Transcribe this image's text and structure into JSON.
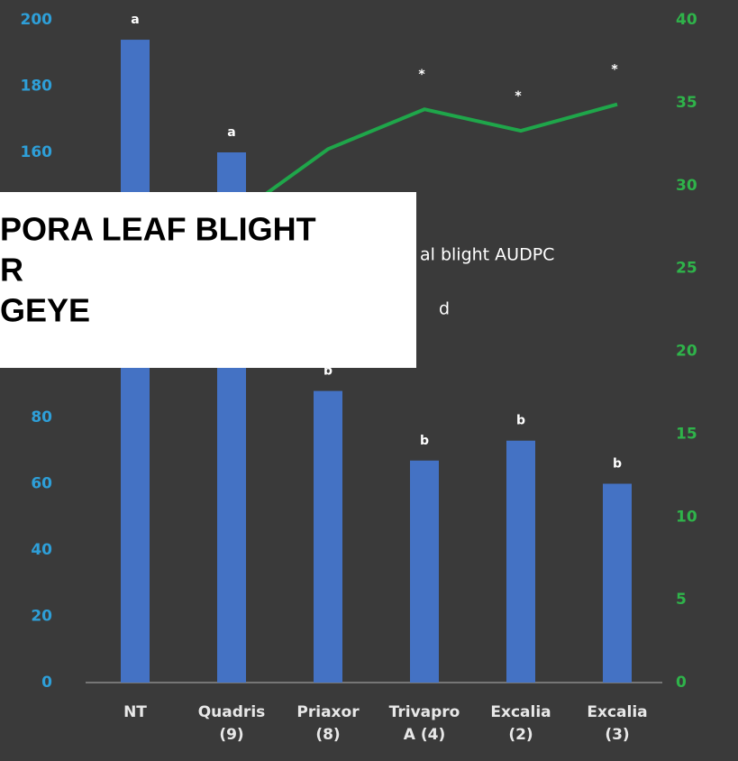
{
  "chart_data": {
    "type": "bar_line",
    "categories": [
      [
        "NT"
      ],
      [
        "Quadris",
        "(9)"
      ],
      [
        "Priaxor",
        "(8)"
      ],
      [
        "Trivapro",
        "A (4)"
      ],
      [
        "Excalia",
        "(2)"
      ],
      [
        "Excalia",
        "(3)"
      ]
    ],
    "series": [
      {
        "color": "#4472c4",
        "values": [
          194,
          160,
          88,
          67,
          73,
          60
        ],
        "letters": [
          "a",
          "a",
          "b",
          "b",
          "b",
          "b"
        ]
      },
      {
        "color": "#1fa64a",
        "axis": "y2",
        "values": [
          null,
          28,
          32.2,
          34.6,
          33.3,
          34.9
        ],
        "marks": [
          null,
          null,
          null,
          "*",
          "*",
          "*"
        ]
      }
    ],
    "ylim": [
      0,
      200
    ],
    "yticks": [
      0,
      20,
      40,
      60,
      80,
      160,
      180,
      200
    ],
    "y2lim": [
      0,
      40
    ],
    "y2ticks": [
      0,
      5,
      10,
      15,
      20,
      25,
      30,
      35,
      40
    ],
    "legend_fragments": [
      "al blight AUDPC",
      "d"
    ],
    "overlay_lines": [
      "PORA LEAF BLIGHT",
      "R",
      "GEYE"
    ]
  }
}
